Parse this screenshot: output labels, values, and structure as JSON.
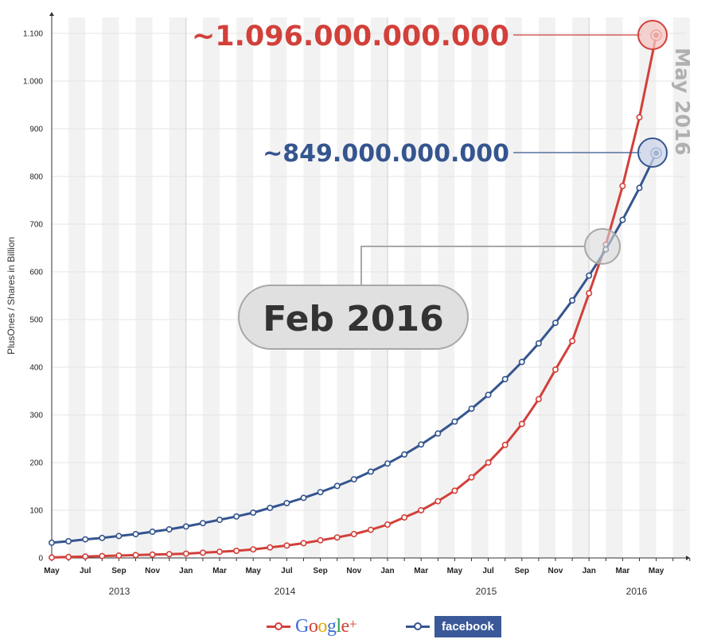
{
  "chart_data": {
    "type": "line",
    "ylabel": "PlusOnes / Shares in Billion",
    "ylim": [
      0,
      1150
    ],
    "yticks": [
      0,
      100,
      200,
      300,
      400,
      500,
      600,
      700,
      800,
      900,
      1000,
      1100
    ],
    "ytick_labels": [
      "0",
      "100",
      "200",
      "300",
      "400",
      "500",
      "600",
      "700",
      "800",
      "900",
      "1.000",
      "1.100"
    ],
    "x_months": [
      "May 2013",
      "Jun 2013",
      "Jul 2013",
      "Aug 2013",
      "Sep 2013",
      "Oct 2013",
      "Nov 2013",
      "Dec 2013",
      "Jan 2014",
      "Feb 2014",
      "Mar 2014",
      "Apr 2014",
      "May 2014",
      "Jun 2014",
      "Jul 2014",
      "Aug 2014",
      "Sep 2014",
      "Oct 2014",
      "Nov 2014",
      "Dec 2014",
      "Jan 2015",
      "Feb 2015",
      "Mar 2015",
      "Apr 2015",
      "May 2015",
      "Jun 2015",
      "Jul 2015",
      "Aug 2015",
      "Sep 2015",
      "Oct 2015",
      "Nov 2015",
      "Dec 2015",
      "Jan 2016",
      "Feb 2016",
      "Mar 2016",
      "Apr 2016",
      "May 2016"
    ],
    "xtick_labels": [
      "May",
      "Jul",
      "Sep",
      "Nov",
      "Jan",
      "Mar",
      "May",
      "Jul",
      "Sep",
      "Nov",
      "Jan",
      "Mar",
      "May",
      "Jul",
      "Sep",
      "Nov",
      "Jan",
      "Mar",
      "May"
    ],
    "year_labels": [
      "2013",
      "2014",
      "2015",
      "2016"
    ],
    "grid": true,
    "legend_position": "bottom-center",
    "series": [
      {
        "name": "Google+",
        "color": "#d2403a",
        "values": [
          1,
          2,
          3,
          4,
          5,
          6,
          7,
          8,
          9,
          11,
          13,
          15,
          18,
          22,
          26,
          31,
          37,
          43,
          50,
          59,
          70,
          85,
          100,
          119,
          141,
          169,
          200,
          237,
          281,
          333,
          395,
          455,
          555,
          657,
          780,
          924,
          1096
        ]
      },
      {
        "name": "facebook",
        "color": "#35558f",
        "values": [
          32,
          35,
          39,
          42,
          46,
          50,
          55,
          60,
          66,
          73,
          80,
          87,
          95,
          105,
          115,
          126,
          138,
          151,
          165,
          181,
          198,
          217,
          238,
          261,
          286,
          313,
          342,
          375,
          411,
          450,
          493,
          540,
          592,
          647,
          709,
          776,
          849
        ]
      }
    ],
    "annotations": [
      {
        "label": "~1.096.000.000.000",
        "series": "Google+",
        "month": "May 2016",
        "value": 1096
      },
      {
        "label": "~849.000.000.000",
        "series": "facebook",
        "month": "May 2016",
        "value": 849
      },
      {
        "label": "May 2016"
      },
      {
        "label": "Feb 2016",
        "month": "Feb 2016",
        "value": 652
      }
    ]
  },
  "legend": {
    "google_label": "Google",
    "google_plus": "+",
    "facebook_label": "facebook"
  },
  "colors": {
    "google_red": "#d2403a",
    "facebook_blue": "#35558f",
    "google_letters": [
      "#3b6fd6",
      "#d2403a",
      "#e0a800",
      "#3b6fd6",
      "#2e9e48",
      "#d2403a"
    ]
  }
}
